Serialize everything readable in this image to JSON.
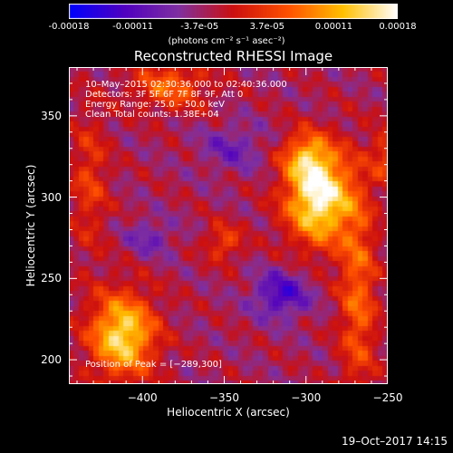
{
  "colorbar": {
    "tick_labels": [
      "-0.00018",
      "-0.00011",
      "-3.7e-05",
      "3.7e-05",
      "0.00011",
      "0.00018"
    ],
    "tick_values": [
      -0.00018,
      -0.00011,
      -3.7e-05,
      3.7e-05,
      0.00011,
      0.00018
    ],
    "range": [
      -0.00018,
      0.00018
    ],
    "units": "(photons cm⁻² s⁻¹ asec⁻²)",
    "colors": [
      "#0000ff",
      "#5000c0",
      "#8030a0",
      "#cc1010",
      "#ff5000",
      "#ffc000",
      "#ffffff"
    ]
  },
  "chart_data": {
    "type": "heatmap",
    "title": "Reconstructed RHESSI Image",
    "xlabel": "Heliocentric X (arcsec)",
    "ylabel": "Heliocentric Y (arcsec)",
    "xlim": [
      -445,
      -250
    ],
    "ylim": [
      185,
      380
    ],
    "x_ticks": [
      -400,
      -350,
      -300,
      -250
    ],
    "y_ticks": [
      200,
      250,
      300,
      350
    ],
    "x_tick_labels": [
      "−400",
      "−350",
      "−300",
      "−250"
    ],
    "y_tick_labels": [
      "200",
      "250",
      "300",
      "350"
    ],
    "annotations": [
      "10–May–2015 02:30:36.000 to 02:40:36.000",
      "Detectors: 3F 5F 6F 7F 8F 9F, Att 0",
      "Energy Range: 25.0 – 50.0 keV",
      "Clean     Total counts: 1.38E+04"
    ],
    "peak_label": "Position of Peak = [−289,300]",
    "peak": [
      -289,
      300
    ],
    "sources": [
      {
        "x": -292,
        "y": 300,
        "sx": 14,
        "sy": 20,
        "amp": 1.0
      },
      {
        "x": -300,
        "y": 325,
        "sx": 10,
        "sy": 10,
        "amp": 0.45
      },
      {
        "x": -412,
        "y": 215,
        "sx": 14,
        "sy": 18,
        "amp": 0.85
      },
      {
        "x": -383,
        "y": 368,
        "sx": 16,
        "sy": 10,
        "amp": 0.45
      },
      {
        "x": -268,
        "y": 240,
        "sx": 8,
        "sy": 45,
        "amp": 0.45
      },
      {
        "x": -350,
        "y": 272,
        "sx": 8,
        "sy": 8,
        "amp": 0.35
      },
      {
        "x": -432,
        "y": 310,
        "sx": 8,
        "sy": 30,
        "amp": 0.3
      },
      {
        "x": -250,
        "y": 325,
        "sx": 7,
        "sy": 12,
        "amp": 0.35
      }
    ],
    "negative_regions": [
      {
        "x": -315,
        "y": 240,
        "sx": 12,
        "sy": 10,
        "amp": -0.45
      },
      {
        "x": -395,
        "y": 275,
        "sx": 10,
        "sy": 8,
        "amp": -0.25
      },
      {
        "x": -345,
        "y": 330,
        "sx": 14,
        "sy": 10,
        "amp": -0.25
      }
    ]
  },
  "footer": {
    "date": "19–Oct–2017 14:15"
  }
}
